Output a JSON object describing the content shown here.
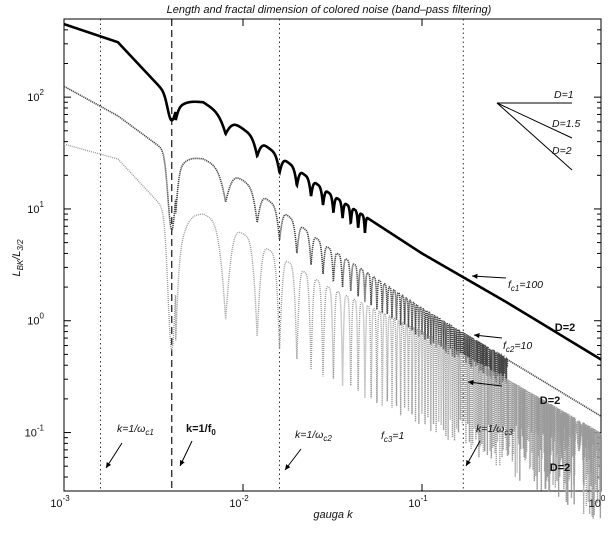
{
  "chart_data": {
    "type": "line",
    "title": "Length and fractal dimension of colored noise (band–pass filtering)",
    "xlabel": "gauga k",
    "ylabel": "L_BK/L_3/2",
    "xscale": "log",
    "yscale": "log",
    "xlim": [
      0.001,
      1
    ],
    "ylim": [
      0.03,
      500
    ],
    "x_ticks": [
      0.001,
      0.01,
      0.1,
      1
    ],
    "x_tick_labels": [
      {
        "base": "10",
        "exp": "-3"
      },
      {
        "base": "10",
        "exp": "-2"
      },
      {
        "base": "10",
        "exp": "-1"
      },
      {
        "base": "10",
        "exp": "0"
      }
    ],
    "y_ticks": [
      0.1,
      1,
      10,
      100
    ],
    "y_tick_labels": [
      {
        "base": "10",
        "exp": "-1"
      },
      {
        "base": "10",
        "exp": "0"
      },
      {
        "base": "10",
        "exp": "1"
      },
      {
        "base": "10",
        "exp": "2"
      }
    ],
    "grid": false,
    "f0": 0.004,
    "series": [
      {
        "style": "thick-solid",
        "color": "#000000",
        "envelope": [
          [
            0.001,
            450
          ],
          [
            0.002,
            310
          ],
          [
            0.004,
            95
          ],
          [
            0.006,
            90
          ],
          [
            0.01,
            52
          ],
          [
            0.03,
            14
          ],
          [
            0.1,
            4
          ],
          [
            0.3,
            1.45
          ],
          [
            1,
            0.45
          ]
        ],
        "dips": [
          [
            0.004,
            62
          ]
        ],
        "ripple_until": 0.05,
        "ripple_depth": 0.15
      },
      {
        "style": "dotted-dense",
        "color": "#444444",
        "envelope": [
          [
            0.001,
            125
          ],
          [
            0.002,
            68
          ],
          [
            0.004,
            30
          ],
          [
            0.006,
            28
          ],
          [
            0.01,
            18
          ],
          [
            0.03,
            4.5
          ],
          [
            0.1,
            1.3
          ],
          [
            0.3,
            0.45
          ],
          [
            1,
            0.14
          ]
        ],
        "dips": [
          [
            0.004,
            6.5
          ]
        ],
        "ripple_until": 0.3,
        "ripple_depth": 0.28
      },
      {
        "style": "dotted-light",
        "color": "#9a9a9a",
        "envelope": [
          [
            0.001,
            38
          ],
          [
            0.002,
            28
          ],
          [
            0.004,
            8.5
          ],
          [
            0.006,
            9
          ],
          [
            0.01,
            6
          ],
          [
            0.03,
            2
          ],
          [
            0.1,
            0.8
          ],
          [
            0.3,
            0.3
          ],
          [
            1,
            0.1
          ]
        ],
        "dips": [
          [
            0.004,
            0.55
          ]
        ],
        "ripple_until": 1,
        "ripple_depth": 0.85
      }
    ],
    "vertical_lines": [
      {
        "x": 0.0016,
        "style": "dotted"
      },
      {
        "x": 0.004,
        "style": "dashed"
      },
      {
        "x": 0.016,
        "style": "dotted"
      },
      {
        "x": 0.17,
        "style": "dotted"
      }
    ],
    "annotations": {
      "k_wc1": {
        "main": "k=1/ω",
        "sub": "c1"
      },
      "k_f0": {
        "main": "k=1/f",
        "sub": "0"
      },
      "k_wc2": {
        "main": "k=1/ω",
        "sub": "c2"
      },
      "k_wc3": {
        "main": "k=1/ω",
        "sub": "c3"
      },
      "fc1": {
        "f": "f",
        "sub": "c1",
        "rest": "=100"
      },
      "fc2": {
        "f": "f",
        "sub": "c2",
        "rest": "=10"
      },
      "fc3": {
        "f": "f",
        "sub": "c3",
        "rest": "=1"
      },
      "d_labels": [
        "D=2",
        "D=2",
        "D=2"
      ],
      "slope_legend": [
        "D=1",
        "D=1.5",
        "D=2"
      ]
    }
  }
}
